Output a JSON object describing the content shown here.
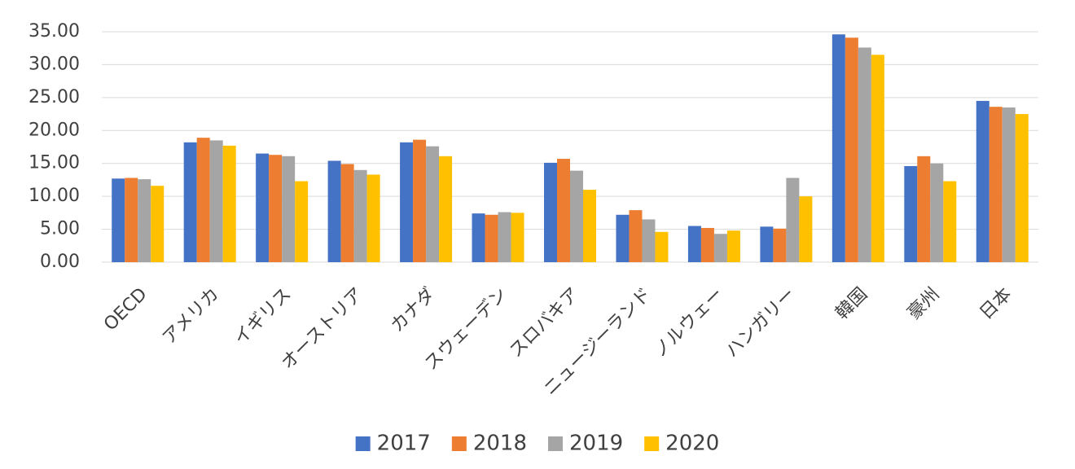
{
  "chart_data": {
    "type": "bar",
    "categories": [
      "OECD",
      "アメリカ",
      "イギリス",
      "オーストリア",
      "カナダ",
      "スウェーデン",
      "スロバキア",
      "ニュージーランド",
      "ノルウェー",
      "ハンガリー",
      "韓国",
      "豪州",
      "日本"
    ],
    "series": [
      {
        "name": "2017",
        "color": "#4472c4",
        "values": [
          12.7,
          18.2,
          16.5,
          15.4,
          18.2,
          7.4,
          15.1,
          7.2,
          5.5,
          5.4,
          34.6,
          14.6,
          24.5
        ]
      },
      {
        "name": "2018",
        "color": "#ed7d31",
        "values": [
          12.8,
          18.9,
          16.3,
          14.9,
          18.6,
          7.2,
          15.7,
          7.9,
          5.2,
          5.1,
          34.1,
          16.1,
          23.6
        ]
      },
      {
        "name": "2019",
        "color": "#a5a5a5",
        "values": [
          12.6,
          18.5,
          16.1,
          14.0,
          17.6,
          7.6,
          13.9,
          6.5,
          4.3,
          12.8,
          32.6,
          15.0,
          23.5
        ]
      },
      {
        "name": "2020",
        "color": "#ffc000",
        "values": [
          11.6,
          17.7,
          12.3,
          13.3,
          16.1,
          7.5,
          11.0,
          4.6,
          4.8,
          10.0,
          31.5,
          12.3,
          22.5
        ]
      }
    ],
    "ylim": [
      0,
      35
    ],
    "yticks": [
      {
        "value": 0,
        "label": "0.00"
      },
      {
        "value": 5,
        "label": "5.00"
      },
      {
        "value": 10,
        "label": "10.00"
      },
      {
        "value": 15,
        "label": "15.00"
      },
      {
        "value": 20,
        "label": "20.00"
      },
      {
        "value": 25,
        "label": "25.00"
      },
      {
        "value": 30,
        "label": "30.00"
      },
      {
        "value": 35,
        "label": "35.00"
      }
    ],
    "grid": true,
    "legend": "bottom"
  }
}
